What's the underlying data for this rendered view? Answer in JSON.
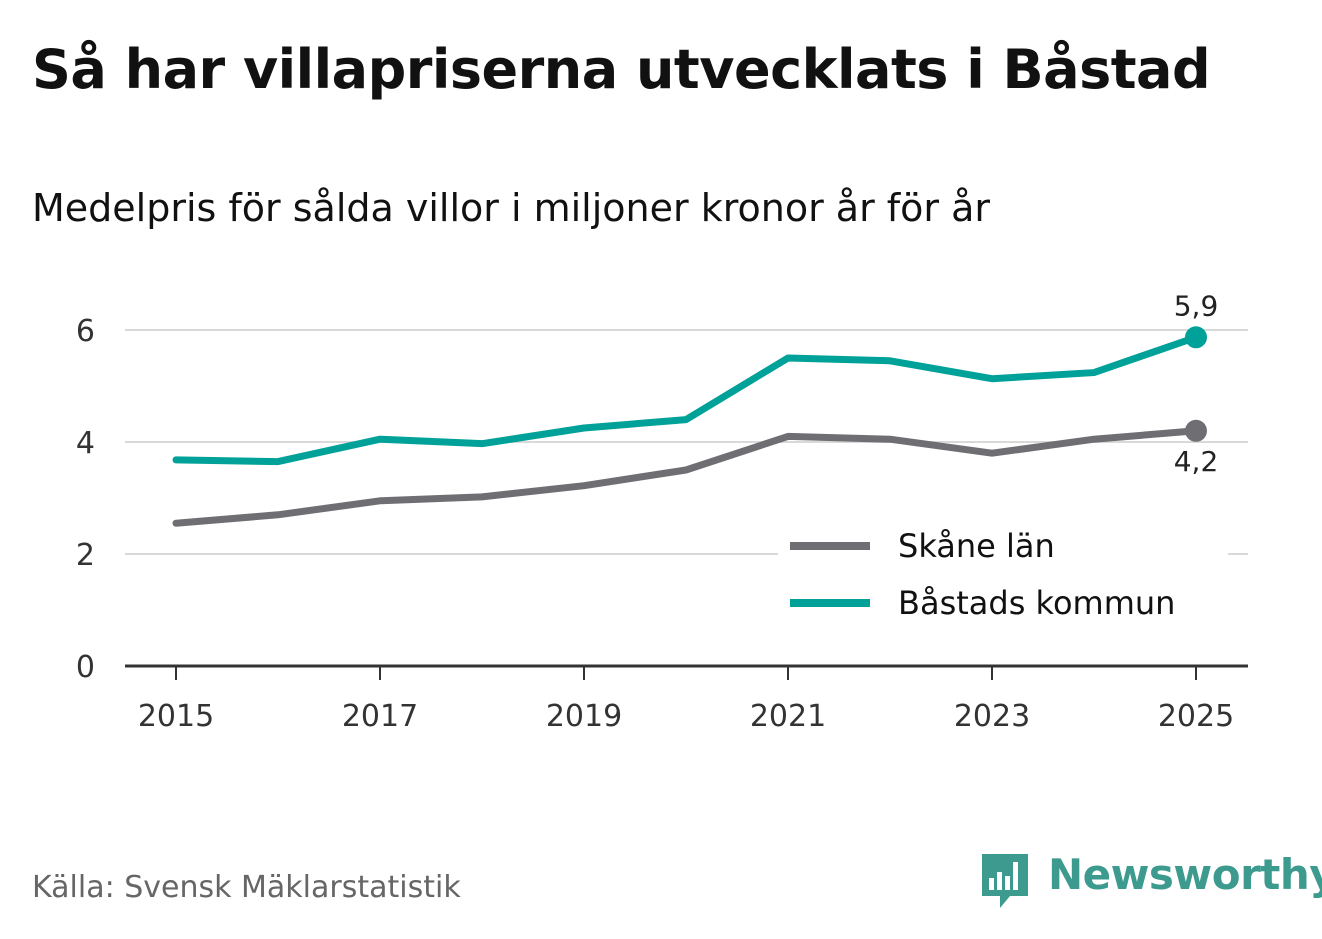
{
  "header": {
    "title": "Så har villapriserna utvecklats i Båstad",
    "subtitle": "Medelpris för sålda villor i miljoner kronor år för år"
  },
  "footer": {
    "source": "Källa: Svensk Mäklarstatistik",
    "brand": "Newsworthy"
  },
  "colors": {
    "skane": "#6f6e73",
    "bastad": "#00a198",
    "brand": "#3d9a8e",
    "grid": "#d9d9d9",
    "axis": "#333333"
  },
  "chart_data": {
    "type": "line",
    "x": [
      2015,
      2016,
      2017,
      2018,
      2019,
      2020,
      2021,
      2022,
      2023,
      2024,
      2025
    ],
    "xticks": [
      "2015",
      "2017",
      "2019",
      "2021",
      "2023",
      "2025"
    ],
    "yticks": [
      "0",
      "2",
      "4",
      "6"
    ],
    "ylim": [
      0,
      6
    ],
    "grid": true,
    "legend_position": "bottom-right",
    "series": [
      {
        "name": "Skåne län",
        "color": "#6f6e73",
        "values": [
          2.55,
          2.7,
          2.95,
          3.02,
          3.22,
          3.5,
          4.1,
          4.05,
          3.8,
          4.05,
          4.2
        ],
        "end_label": "4,2"
      },
      {
        "name": "Båstads kommun",
        "color": "#00a198",
        "values": [
          3.68,
          3.65,
          4.05,
          3.97,
          4.25,
          4.4,
          5.5,
          5.45,
          5.13,
          5.24,
          5.87
        ],
        "end_label": "5,9"
      }
    ]
  }
}
